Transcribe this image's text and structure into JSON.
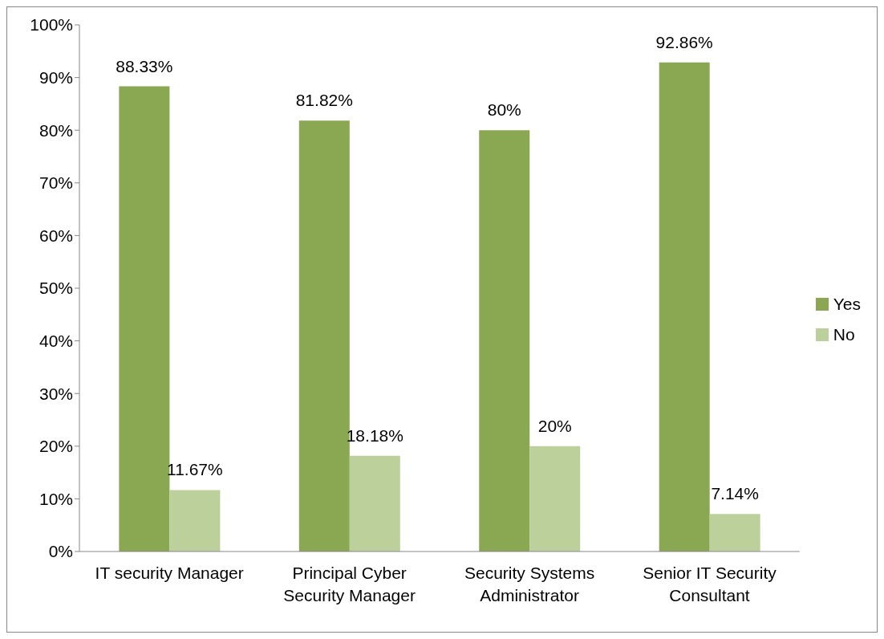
{
  "chart_data": {
    "type": "bar",
    "categories": [
      "IT security Manager",
      "Principal Cyber Security Manager",
      "Security Systems Administrator",
      "Senior IT Security Consultant"
    ],
    "series": [
      {
        "name": "Yes",
        "color": "#8aa751",
        "values": [
          88.33,
          81.82,
          80,
          92.86
        ],
        "value_labels": [
          "88.33%",
          "81.82%",
          "80%",
          "92.86%"
        ]
      },
      {
        "name": "No",
        "color": "#bbd09a",
        "values": [
          11.67,
          18.18,
          20,
          7.14
        ],
        "value_labels": [
          "11.67%",
          "18.18%",
          "20%",
          "7.14%"
        ]
      }
    ],
    "ylim": [
      0,
      100
    ],
    "yticks": [
      {
        "value": 0,
        "label": "0%"
      },
      {
        "value": 10,
        "label": "10%"
      },
      {
        "value": 20,
        "label": "20%"
      },
      {
        "value": 30,
        "label": "30%"
      },
      {
        "value": 40,
        "label": "40%"
      },
      {
        "value": 50,
        "label": "50%"
      },
      {
        "value": 60,
        "label": "60%"
      },
      {
        "value": 70,
        "label": "70%"
      },
      {
        "value": 80,
        "label": "80%"
      },
      {
        "value": 90,
        "label": "90%"
      },
      {
        "value": 100,
        "label": "100%"
      }
    ],
    "legend": "right"
  }
}
